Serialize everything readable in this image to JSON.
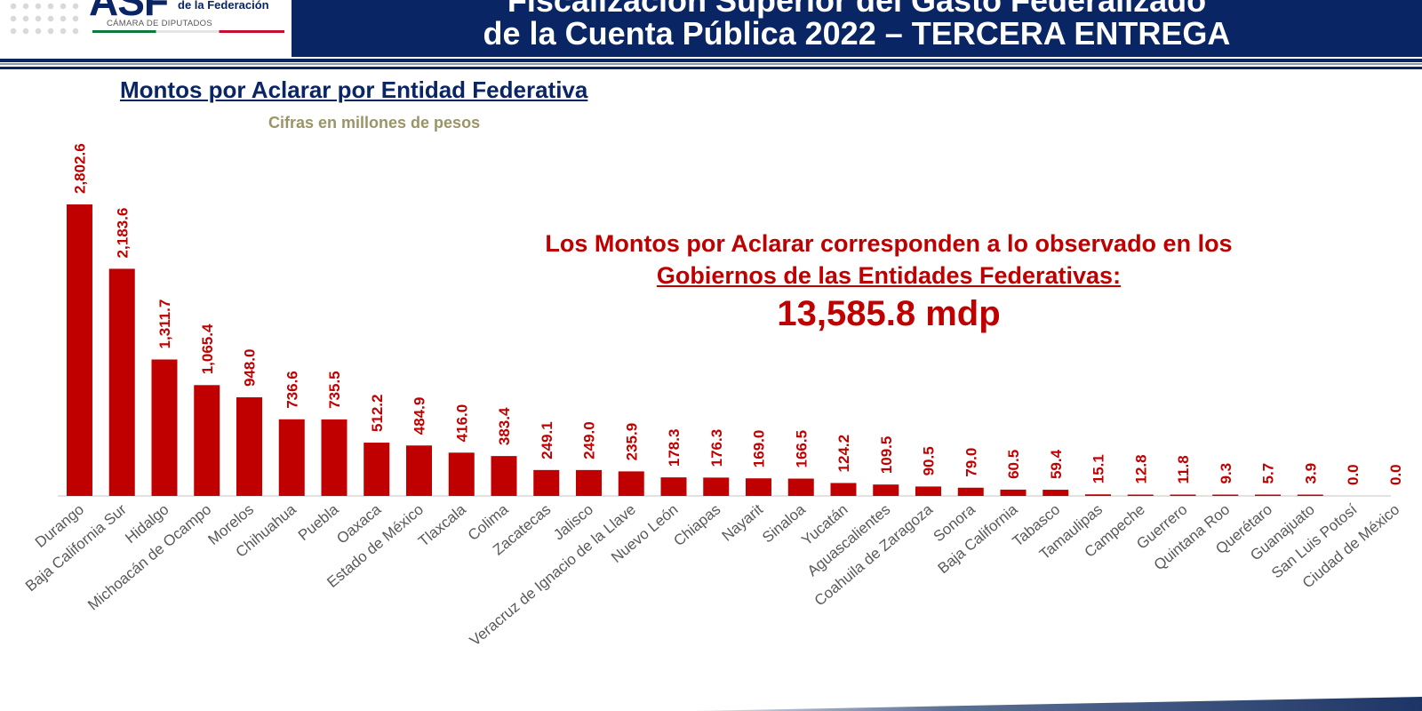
{
  "header": {
    "logo_main": "ASF",
    "logo_line": "de la Federación",
    "logo_sub": "CÁMARA DE DIPUTADOS",
    "title_line1": "Fiscalización Superior del Gasto Federalizado",
    "title_line2": "de la Cuenta Pública 2022 – TERCERA ENTREGA"
  },
  "annotation": {
    "line1": "Los Montos por Aclarar corresponden a lo observado en los",
    "line2": "Gobiernos de las Entidades Federativas:",
    "total": "13,585.8 mdp"
  },
  "colors": {
    "bar": "#c00000",
    "title": "#0a2564",
    "subtitle": "#9b9467",
    "header_band": "#0a2564"
  },
  "chart_data": {
    "type": "bar",
    "title": "Montos por Aclarar por Entidad Federativa",
    "subtitle": "Cifras en millones de pesos",
    "categories": [
      "Durango",
      "Baja California Sur",
      "Hidalgo",
      "Michoacán de Ocampo",
      "Morelos",
      "Chihuahua",
      "Puebla",
      "Oaxaca",
      "Estado de México",
      "Tlaxcala",
      "Colima",
      "Zacatecas",
      "Jalisco",
      "Veracruz de Ignacio de la Llave",
      "Nuevo León",
      "Chiapas",
      "Nayarit",
      "Sinaloa",
      "Yucatán",
      "Aguascalientes",
      "Coahuila de Zaragoza",
      "Sonora",
      "Baja California",
      "Tabasco",
      "Tamaulipas",
      "Campeche",
      "Guerrero",
      "Quintana Roo",
      "Querétaro",
      "Guanajuato",
      "San Luis Potosí",
      "Ciudad de México"
    ],
    "values": [
      2802.6,
      2183.6,
      1311.7,
      1065.4,
      948.0,
      736.6,
      735.5,
      512.2,
      484.9,
      416.0,
      383.4,
      249.1,
      249.0,
      235.9,
      178.3,
      176.3,
      169.0,
      166.5,
      124.2,
      109.5,
      90.5,
      79.0,
      60.5,
      59.4,
      15.1,
      12.8,
      11.8,
      9.3,
      5.7,
      3.9,
      0.0,
      0.0
    ],
    "value_labels": [
      "2,802.6",
      "2,183.6",
      "1,311.7",
      "1,065.4",
      "948.0",
      "736.6",
      "735.5",
      "512.2",
      "484.9",
      "416.0",
      "383.4",
      "249.1",
      "249.0",
      "235.9",
      "178.3",
      "176.3",
      "169.0",
      "166.5",
      "124.2",
      "109.5",
      "90.5",
      "79.0",
      "60.5",
      "59.4",
      "15.1",
      "12.8",
      "11.8",
      "9.3",
      "5.7",
      "3.9",
      "0.0",
      "0.0"
    ],
    "ylim": [
      0,
      2802.6
    ],
    "grid": false,
    "legend": "none"
  }
}
